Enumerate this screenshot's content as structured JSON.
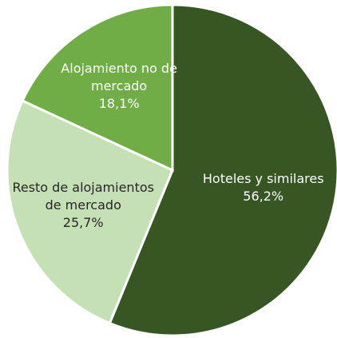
{
  "chart_data": {
    "type": "pie",
    "categories": [
      "Hoteles y similares",
      "Resto de alojamientos de mercado",
      "Alojamiento no de mercado"
    ],
    "values": [
      56.2,
      25.7,
      18.1
    ],
    "value_labels": [
      "56,2%",
      "25,7%",
      "18,1%"
    ],
    "colors": [
      "#375623",
      "#c5e0b4",
      "#70ad47"
    ],
    "label_colors": [
      "#ffffff",
      "#262626",
      "#ffffff"
    ]
  }
}
